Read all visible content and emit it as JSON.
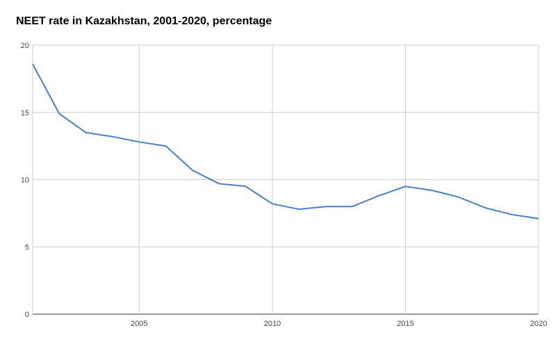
{
  "chart_data": {
    "type": "line",
    "title": "NEET rate in Kazakhstan, 2001-2020, percentage",
    "xlabel": "",
    "ylabel": "",
    "xlim": [
      2001,
      2020
    ],
    "ylim": [
      0,
      20
    ],
    "x_ticks": [
      2005,
      2010,
      2015,
      2020
    ],
    "y_ticks": [
      0,
      5,
      10,
      15,
      20
    ],
    "grid": true,
    "legend": "none",
    "series": [
      {
        "color": "#3d7fe0",
        "x": [
          2001,
          2002,
          2003,
          2004,
          2005,
          2006,
          2007,
          2008,
          2009,
          2010,
          2011,
          2012,
          2013,
          2014,
          2015,
          2016,
          2017,
          2018,
          2019,
          2020
        ],
        "values": [
          18.6,
          14.9,
          13.5,
          13.2,
          12.8,
          12.5,
          10.7,
          9.7,
          9.5,
          8.2,
          7.8,
          8.0,
          8.0,
          8.8,
          9.5,
          9.2,
          8.7,
          7.9,
          7.4,
          7.1
        ]
      }
    ]
  }
}
